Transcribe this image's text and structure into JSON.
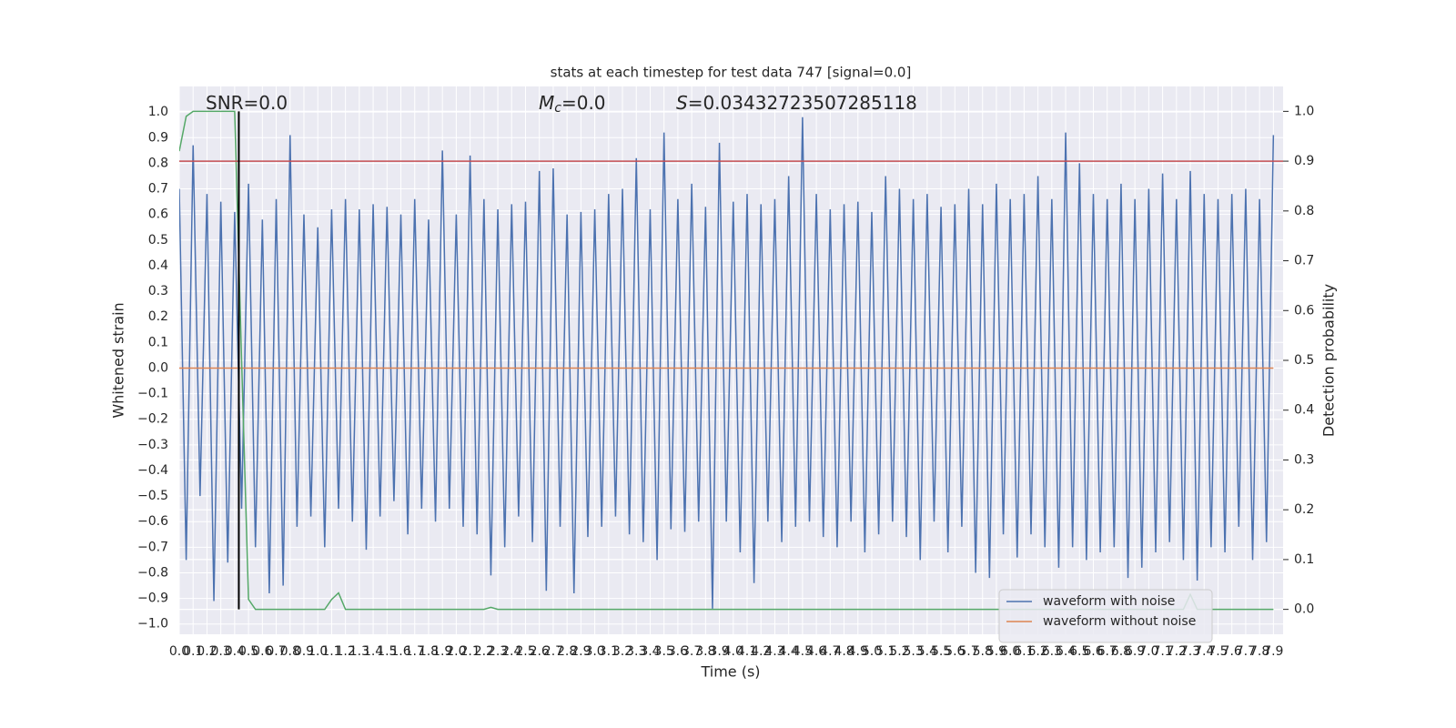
{
  "chart_data": {
    "type": "line",
    "title": "stats at each timestep for test data 747 [signal=0.0]",
    "xlabel": "Time (s)",
    "ylabel": "Whitened strain",
    "y2label": "Detection probability",
    "annotations": [
      {
        "text": "SNR=0.0"
      },
      {
        "symbol": "M",
        "subscript": "c",
        "text": "=0.0"
      },
      {
        "symbol": "S",
        "text": "=0.03432723507285118"
      }
    ],
    "x": [
      0,
      0.05,
      0.1,
      0.15,
      0.2,
      0.25,
      0.3,
      0.35,
      0.4,
      0.45,
      0.5,
      0.55,
      0.6,
      0.65,
      0.7,
      0.75,
      0.8,
      0.85,
      0.9,
      0.95,
      1.0,
      1.05,
      1.1,
      1.15,
      1.2,
      1.25,
      1.3,
      1.35,
      1.4,
      1.45,
      1.5,
      1.55,
      1.6,
      1.65,
      1.7,
      1.75,
      1.8,
      1.85,
      1.9,
      1.95,
      2.0,
      2.05,
      2.1,
      2.15,
      2.2,
      2.25,
      2.3,
      2.35,
      2.4,
      2.45,
      2.5,
      2.55,
      2.6,
      2.65,
      2.7,
      2.75,
      2.8,
      2.85,
      2.9,
      2.95,
      3.0,
      3.05,
      3.1,
      3.15,
      3.2,
      3.25,
      3.3,
      3.35,
      3.4,
      3.45,
      3.5,
      3.55,
      3.6,
      3.65,
      3.7,
      3.75,
      3.8,
      3.85,
      3.9,
      3.95,
      4.0,
      4.05,
      4.1,
      4.15,
      4.2,
      4.25,
      4.3,
      4.35,
      4.4,
      4.45,
      4.5,
      4.55,
      4.6,
      4.65,
      4.7,
      4.75,
      4.8,
      4.85,
      4.9,
      4.95,
      5.0,
      5.05,
      5.1,
      5.15,
      5.2,
      5.25,
      5.3,
      5.35,
      5.4,
      5.45,
      5.5,
      5.55,
      5.6,
      5.65,
      5.7,
      5.75,
      5.8,
      5.85,
      5.9,
      5.95,
      6.0,
      6.05,
      6.1,
      6.15,
      6.2,
      6.25,
      6.3,
      6.35,
      6.4,
      6.45,
      6.5,
      6.55,
      6.6,
      6.65,
      6.7,
      6.75,
      6.8,
      6.85,
      6.9,
      6.95,
      7.0,
      7.05,
      7.1,
      7.15,
      7.2,
      7.25,
      7.3,
      7.35,
      7.4,
      7.45,
      7.5,
      7.55,
      7.6,
      7.65,
      7.7,
      7.75,
      7.8,
      7.85,
      7.9
    ],
    "series": [
      {
        "name": "waveform with noise",
        "color": "#4c72b0",
        "values": [
          0.7,
          -0.75,
          0.87,
          -0.5,
          0.68,
          -0.91,
          0.65,
          -0.76,
          0.61,
          -0.55,
          0.72,
          -0.7,
          0.58,
          -0.88,
          0.66,
          -0.85,
          0.91,
          -0.62,
          0.6,
          -0.58,
          0.55,
          -0.7,
          0.62,
          -0.55,
          0.66,
          -0.6,
          0.62,
          -0.71,
          0.64,
          -0.58,
          0.63,
          -0.52,
          0.6,
          -0.65,
          0.66,
          -0.55,
          0.58,
          -0.6,
          0.85,
          -0.55,
          0.6,
          -0.62,
          0.83,
          -0.65,
          0.66,
          -0.81,
          0.62,
          -0.7,
          0.64,
          -0.58,
          0.65,
          -0.68,
          0.77,
          -0.87,
          0.78,
          -0.62,
          0.6,
          -0.88,
          0.61,
          -0.66,
          0.62,
          -0.62,
          0.68,
          -0.58,
          0.7,
          -0.65,
          0.82,
          -0.68,
          0.62,
          -0.75,
          0.92,
          -0.63,
          0.66,
          -0.64,
          0.72,
          -0.6,
          0.63,
          -0.94,
          0.88,
          -0.6,
          0.65,
          -0.72,
          0.68,
          -0.84,
          0.64,
          -0.6,
          0.66,
          -0.68,
          0.75,
          -0.62,
          0.98,
          -0.6,
          0.68,
          -0.66,
          0.62,
          -0.7,
          0.64,
          -0.6,
          0.65,
          -0.72,
          0.61,
          -0.65,
          0.75,
          -0.6,
          0.7,
          -0.66,
          0.66,
          -0.75,
          0.68,
          -0.6,
          0.63,
          -0.72,
          0.64,
          -0.62,
          0.7,
          -0.8,
          0.64,
          -0.82,
          0.72,
          -0.65,
          0.66,
          -0.74,
          0.68,
          -0.65,
          0.75,
          -0.7,
          0.66,
          -0.78,
          0.92,
          -0.7,
          0.8,
          -0.75,
          0.68,
          -0.72,
          0.66,
          -0.7,
          0.72,
          -0.82,
          0.66,
          -0.78,
          0.7,
          -0.72,
          0.76,
          -0.68,
          0.66,
          -0.75,
          0.77,
          -0.83,
          0.68,
          -0.7,
          0.66,
          -0.72,
          0.68,
          -0.62,
          0.7,
          -0.75,
          0.66,
          -0.68,
          0.91
        ]
      },
      {
        "name": "waveform without noise",
        "color": "#dd8452",
        "values": [
          0,
          0,
          0,
          0,
          0,
          0,
          0,
          0,
          0,
          0,
          0,
          0,
          0,
          0,
          0,
          0,
          0,
          0,
          0,
          0,
          0,
          0,
          0,
          0,
          0,
          0,
          0,
          0,
          0,
          0,
          0,
          0,
          0,
          0,
          0,
          0,
          0,
          0,
          0,
          0,
          0,
          0,
          0,
          0,
          0,
          0,
          0,
          0,
          0,
          0,
          0,
          0,
          0,
          0,
          0,
          0,
          0,
          0,
          0,
          0,
          0,
          0,
          0,
          0,
          0,
          0,
          0,
          0,
          0,
          0,
          0,
          0,
          0,
          0,
          0,
          0,
          0,
          0,
          0,
          0,
          0,
          0,
          0,
          0,
          0,
          0,
          0,
          0,
          0,
          0,
          0,
          0,
          0,
          0,
          0,
          0,
          0,
          0,
          0,
          0,
          0,
          0,
          0,
          0,
          0,
          0,
          0,
          0,
          0,
          0,
          0,
          0,
          0,
          0,
          0,
          0,
          0,
          0,
          0,
          0,
          0,
          0,
          0,
          0,
          0,
          0,
          0,
          0,
          0,
          0,
          0,
          0,
          0,
          0,
          0,
          0,
          0,
          0,
          0,
          0,
          0,
          0,
          0,
          0,
          0,
          0,
          0,
          0,
          0,
          0,
          0,
          0,
          0,
          0,
          0,
          0,
          0,
          0,
          0
        ]
      },
      {
        "color": "#55a868",
        "axis": "y2",
        "values": [
          0.92,
          0.99,
          1.0,
          1.0,
          1.0,
          1.0,
          1.0,
          1.0,
          1.0,
          0.5,
          0.02,
          0,
          0,
          0,
          0,
          0,
          0,
          0,
          0,
          0,
          0,
          0,
          0.02,
          0.033,
          0,
          0,
          0,
          0,
          0,
          0,
          0,
          0,
          0,
          0,
          0,
          0,
          0,
          0,
          0,
          0,
          0,
          0,
          0,
          0,
          0,
          0.004,
          0,
          0,
          0,
          0,
          0,
          0,
          0,
          0,
          0,
          0,
          0,
          0,
          0,
          0,
          0,
          0,
          0,
          0,
          0,
          0,
          0,
          0,
          0,
          0,
          0,
          0,
          0,
          0,
          0,
          0,
          0,
          0,
          0,
          0,
          0,
          0,
          0,
          0,
          0,
          0,
          0,
          0,
          0,
          0,
          0,
          0,
          0,
          0,
          0,
          0,
          0,
          0,
          0,
          0,
          0,
          0,
          0,
          0,
          0,
          0,
          0,
          0,
          0,
          0,
          0,
          0,
          0,
          0,
          0,
          0,
          0,
          0,
          0,
          0,
          0,
          0,
          0,
          0,
          0,
          0,
          0,
          0,
          0,
          0,
          0,
          0,
          0,
          0,
          0,
          0,
          0,
          0,
          0,
          0,
          0,
          0,
          0,
          0,
          0,
          0,
          0.03,
          0,
          0,
          0,
          0,
          0,
          0,
          0,
          0,
          0,
          0,
          0,
          0
        ]
      }
    ],
    "threshold": {
      "y": 0.9,
      "axis": "y2",
      "color": "#c44e52"
    },
    "vline": {
      "x": 0.43,
      "ymin": 0,
      "ymax": 1,
      "axis": "y2",
      "color": "#000000"
    },
    "xlim": [
      0,
      7.97
    ],
    "ylim": [
      -1.04,
      1.1
    ],
    "y2lim": [
      -0.05,
      1.05
    ],
    "xticks": [
      {
        "value": 0,
        "label": "0.0"
      },
      0.1,
      0.2,
      0.3,
      0.4,
      0.5,
      0.6,
      0.7,
      0.8,
      0.9,
      {
        "value": 1,
        "label": "1.0"
      },
      1.1,
      1.2,
      1.3,
      1.4,
      1.5,
      1.6,
      1.7,
      1.8,
      1.9,
      {
        "value": 2,
        "label": "2.0"
      },
      2.1,
      2.2,
      2.3,
      2.4,
      2.5,
      2.6,
      2.7,
      2.8,
      2.9,
      {
        "value": 3,
        "label": "3.0"
      },
      3.1,
      3.2,
      3.3,
      3.4,
      3.5,
      3.6,
      3.7,
      3.8,
      3.9,
      {
        "value": 4,
        "label": "4.0"
      },
      4.1,
      4.2,
      4.3,
      4.4,
      4.5,
      4.6,
      4.7,
      4.8,
      4.9,
      {
        "value": 5,
        "label": "5.0"
      },
      5.1,
      5.2,
      5.3,
      5.4,
      5.5,
      5.6,
      5.7,
      5.8,
      5.9,
      {
        "value": 6,
        "label": "6.0"
      },
      6.1,
      6.2,
      6.3,
      6.4,
      6.5,
      6.6,
      6.7,
      6.8,
      6.9,
      {
        "value": 7,
        "label": "7.0"
      },
      7.1,
      7.2,
      7.3,
      7.4,
      7.5,
      7.6,
      7.7,
      7.8,
      7.9
    ],
    "yticks": [
      {
        "value": -1,
        "label": "−1.0"
      },
      {
        "value": -0.9,
        "label": "−0.9"
      },
      {
        "value": -0.8,
        "label": "−0.8"
      },
      {
        "value": -0.7,
        "label": "−0.7"
      },
      {
        "value": -0.6,
        "label": "−0.6"
      },
      {
        "value": -0.5,
        "label": "−0.5"
      },
      {
        "value": -0.4,
        "label": "−0.4"
      },
      {
        "value": -0.3,
        "label": "−0.3"
      },
      {
        "value": -0.2,
        "label": "−0.2"
      },
      {
        "value": -0.1,
        "label": "−0.1"
      },
      {
        "value": 0,
        "label": "0.0"
      },
      0.1,
      0.2,
      0.3,
      0.4,
      0.5,
      0.6,
      0.7,
      0.8,
      0.9,
      {
        "value": 1,
        "label": "1.0"
      }
    ],
    "y2ticks": [
      {
        "value": 0,
        "label": "0.0"
      },
      0.1,
      0.2,
      0.3,
      0.4,
      0.5,
      0.6,
      0.7,
      0.8,
      0.9,
      {
        "value": 1,
        "label": "1.0"
      }
    ],
    "grid": true,
    "legend": "lower right",
    "background": "#eaeaf2"
  }
}
